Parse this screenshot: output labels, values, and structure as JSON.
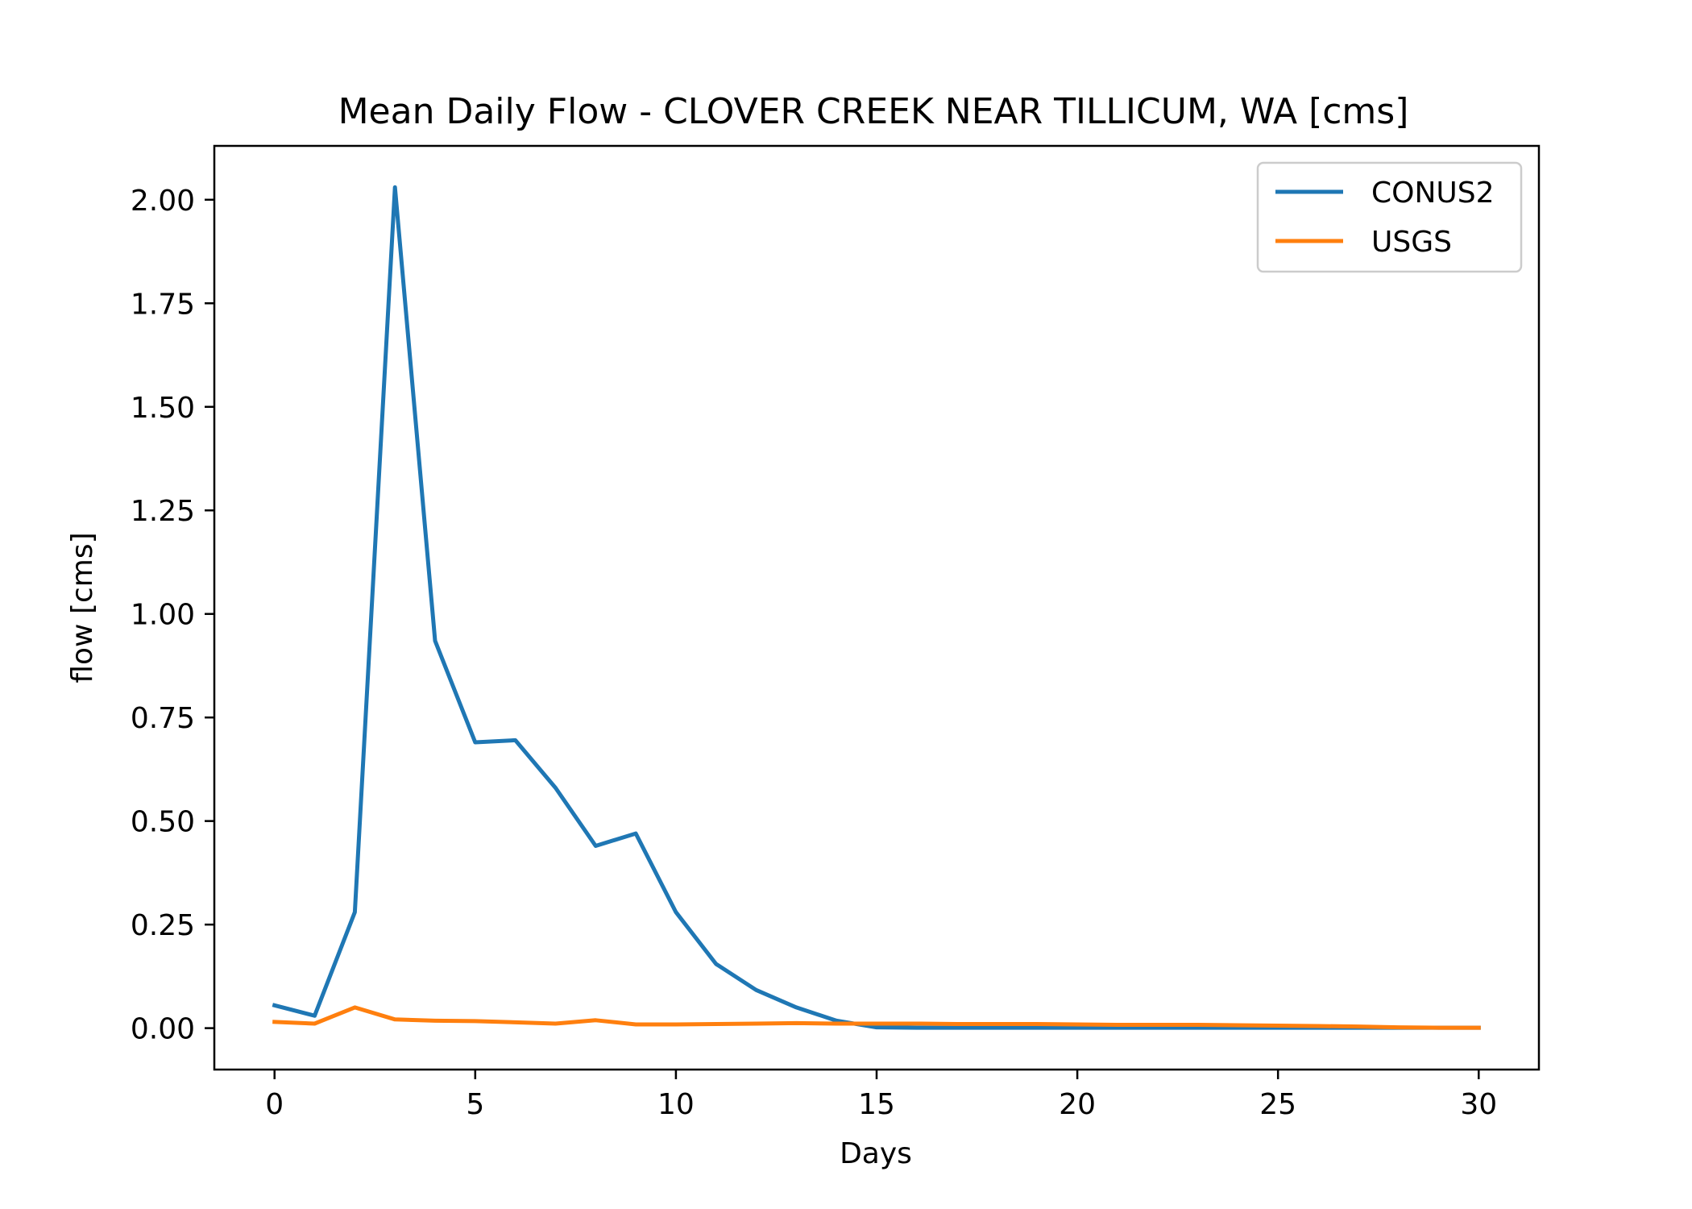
{
  "chart_data": {
    "type": "line",
    "title": "Mean Daily Flow - CLOVER CREEK NEAR TILLICUM, WA [cms]",
    "xlabel": "Days",
    "ylabel": "flow [cms]",
    "xlim": [
      -1.5,
      31.5
    ],
    "ylim": [
      -0.1,
      2.13
    ],
    "xticks": [
      0,
      5,
      10,
      15,
      20,
      25,
      30
    ],
    "xtick_labels": [
      "0",
      "5",
      "10",
      "15",
      "20",
      "25",
      "30"
    ],
    "yticks": [
      0,
      0.25,
      0.5,
      0.75,
      1.0,
      1.25,
      1.5,
      1.75,
      2.0
    ],
    "ytick_labels": [
      "0.00",
      "0.25",
      "0.50",
      "0.75",
      "1.00",
      "1.25",
      "1.50",
      "1.75",
      "2.00"
    ],
    "grid": false,
    "legend_position": "upper right",
    "x": [
      0,
      1,
      2,
      3,
      4,
      5,
      6,
      7,
      8,
      9,
      10,
      11,
      12,
      13,
      14,
      15,
      16,
      17,
      18,
      19,
      20,
      21,
      22,
      23,
      24,
      25,
      26,
      27,
      28,
      29,
      30
    ],
    "series": [
      {
        "name": "CONUS2",
        "color": "#1f77b4",
        "values": [
          0.055,
          0.03,
          0.28,
          2.03,
          0.935,
          0.69,
          0.695,
          0.58,
          0.44,
          0.47,
          0.28,
          0.155,
          0.092,
          0.05,
          0.018,
          0.002,
          0.001,
          0.001,
          0.001,
          0.001,
          0.001,
          0.001,
          0.001,
          0.001,
          0.001,
          0.001,
          0.001,
          0.001,
          0.001,
          0.001,
          0.001
        ]
      },
      {
        "name": "USGS",
        "color": "#ff7f0e",
        "values": [
          0.015,
          0.011,
          0.05,
          0.021,
          0.018,
          0.017,
          0.014,
          0.011,
          0.019,
          0.009,
          0.009,
          0.01,
          0.011,
          0.012,
          0.011,
          0.011,
          0.011,
          0.01,
          0.01,
          0.01,
          0.009,
          0.008,
          0.008,
          0.008,
          0.007,
          0.006,
          0.005,
          0.004,
          0.002,
          0.001,
          0.001
        ]
      }
    ]
  }
}
